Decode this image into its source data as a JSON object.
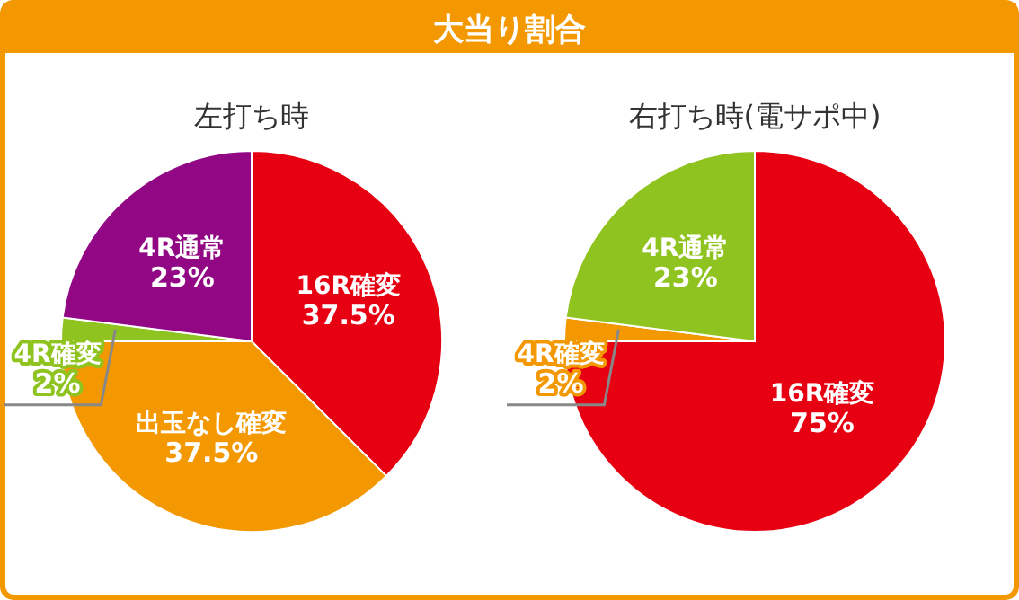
{
  "chart_data": [
    {
      "type": "pie",
      "title": "大当り割合",
      "subtitle": "左打ち時",
      "categories": [
        "16R確変",
        "出玉なし確変",
        "4R確変",
        "4R通常"
      ],
      "values": [
        37.5,
        37.5,
        2,
        23
      ],
      "value_labels": [
        "37.5%",
        "37.5%",
        "2%",
        "23%"
      ],
      "colors": [
        "#e60012",
        "#f39800",
        "#8fc31f",
        "#920783"
      ]
    },
    {
      "type": "pie",
      "subtitle": "右打ち時(電サポ中)",
      "categories": [
        "16R確変",
        "4R確変",
        "4R通常"
      ],
      "values": [
        75,
        2,
        23
      ],
      "value_labels": [
        "75%",
        "2%",
        "23%"
      ],
      "colors": [
        "#e60012",
        "#f39800",
        "#8fc31f"
      ]
    }
  ]
}
